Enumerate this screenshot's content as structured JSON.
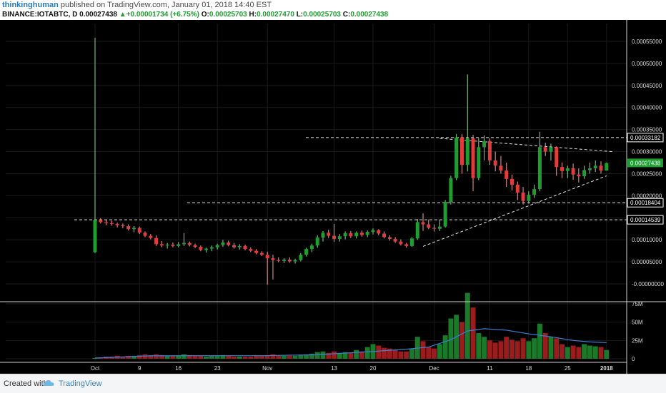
{
  "header": {
    "author": "thinkinghuman",
    "published": "published on TradingView.com, January 01, 2018 14:40 EST",
    "symbol": "BINANCE:IOTABTC, D",
    "last": "0.00027438",
    "change_arrow": "▲",
    "change": "+0.00001734 (+6.75%)",
    "o_label": "O:",
    "o_value": "0.00025703",
    "h_label": "H:",
    "h_value": "0.00027470",
    "l_label": "L:",
    "l_value": "0.00025703",
    "c_label": "C:",
    "c_value": "0.00027438"
  },
  "footer": {
    "created_with": "Created with",
    "brand": "TradingView",
    "logo_icon": "tradingview-cloud-icon"
  },
  "colors": {
    "background": "#000000",
    "up": "#1f9d31",
    "down": "#e23b3b",
    "grid": "#1a1a1a",
    "volume_ma": "#3d7fd6",
    "axis_text": "#dddddd",
    "last_price_bg": "#1f9d31"
  },
  "chart_data": {
    "type": "candlestick",
    "title": "",
    "xlabel": "",
    "ylabel": "",
    "ylim": [
      -0.0,
      0.00055
    ],
    "price_axis_ticks": [
      "0.00055000",
      "0.00050000",
      "0.00045000",
      "0.00040000",
      "0.00035000",
      "0.00030000",
      "0.00025000",
      "0.00020000",
      "0.00015000",
      "0.00010000",
      "0.00005000",
      "-0.00000000"
    ],
    "price_axis_tick_values": [
      0.00055,
      0.0005,
      0.00045,
      0.0004,
      0.00035,
      0.0003,
      0.00025,
      0.0002,
      0.00015,
      0.0001,
      5e-05,
      0
    ],
    "x_axis_labels": [
      "Oct",
      "9",
      "16",
      "23",
      "Nov",
      "13",
      "20",
      "Dec",
      "11",
      "18",
      "25",
      "2018"
    ],
    "x_axis_label_days": [
      0,
      8,
      15,
      22,
      31,
      43,
      50,
      61,
      71,
      78,
      85,
      92
    ],
    "volume_ticks": [
      "75M",
      "50M",
      "25M",
      "0"
    ],
    "volume_tick_values": [
      75,
      50,
      25,
      0
    ],
    "volume_unit": "M",
    "price_level_labels": [
      {
        "label": "0.00033182",
        "value": 0.00033182,
        "style": "dashed"
      },
      {
        "label": "0.00018404",
        "value": 0.00018404,
        "style": "dashed"
      },
      {
        "label": "0.00014539",
        "value": 0.00014539,
        "style": "dashed"
      }
    ],
    "last_price_label": {
      "label": "0.00027438",
      "value": 0.00027438
    },
    "trend_lines": [
      {
        "from": [
          62,
          0.00033
        ],
        "to": [
          93,
          0.0003
        ]
      },
      {
        "from": [
          59,
          8.5e-05
        ],
        "to": [
          92,
          0.000245
        ]
      }
    ],
    "candles": [
      {
        "d": 0,
        "o": 7.2e-05,
        "h": 0.000558,
        "l": 7e-05,
        "c": 0.000145,
        "v": 1
      },
      {
        "d": 1,
        "o": 0.000145,
        "h": 0.000149,
        "l": 0.000137,
        "c": 0.00014,
        "v": 2
      },
      {
        "d": 2,
        "o": 0.00014,
        "h": 0.000145,
        "l": 0.000133,
        "c": 0.000138,
        "v": 3
      },
      {
        "d": 3,
        "o": 0.000138,
        "h": 0.000143,
        "l": 0.000132,
        "c": 0.000136,
        "v": 3
      },
      {
        "d": 4,
        "o": 0.000136,
        "h": 0.000139,
        "l": 0.000128,
        "c": 0.000133,
        "v": 4
      },
      {
        "d": 5,
        "o": 0.000133,
        "h": 0.000137,
        "l": 0.000126,
        "c": 0.000131,
        "v": 3
      },
      {
        "d": 6,
        "o": 0.000131,
        "h": 0.000135,
        "l": 0.000121,
        "c": 0.000124,
        "v": 4
      },
      {
        "d": 7,
        "o": 0.000124,
        "h": 0.000131,
        "l": 0.000117,
        "c": 0.000127,
        "v": 4
      },
      {
        "d": 8,
        "o": 0.000127,
        "h": 0.00013,
        "l": 0.000113,
        "c": 0.000116,
        "v": 5
      },
      {
        "d": 9,
        "o": 0.000116,
        "h": 0.000119,
        "l": 0.000106,
        "c": 0.000109,
        "v": 6
      },
      {
        "d": 10,
        "o": 0.000109,
        "h": 0.000113,
        "l": 0.000101,
        "c": 0.000104,
        "v": 5
      },
      {
        "d": 11,
        "o": 0.000104,
        "h": 0.00011,
        "l": 8.6e-05,
        "c": 9e-05,
        "v": 6
      },
      {
        "d": 12,
        "o": 9e-05,
        "h": 9.7e-05,
        "l": 8.3e-05,
        "c": 8.7e-05,
        "v": 5
      },
      {
        "d": 13,
        "o": 8.7e-05,
        "h": 9.3e-05,
        "l": 8e-05,
        "c": 8.9e-05,
        "v": 4
      },
      {
        "d": 14,
        "o": 8.9e-05,
        "h": 9.4e-05,
        "l": 8.3e-05,
        "c": 8.6e-05,
        "v": 4
      },
      {
        "d": 15,
        "o": 8.6e-05,
        "h": 9.5e-05,
        "l": 8.3e-05,
        "c": 9e-05,
        "v": 4
      },
      {
        "d": 16,
        "o": 9e-05,
        "h": 0.000115,
        "l": 8.6e-05,
        "c": 9.3e-05,
        "v": 6
      },
      {
        "d": 17,
        "o": 9.3e-05,
        "h": 9.6e-05,
        "l": 8.5e-05,
        "c": 8.8e-05,
        "v": 5
      },
      {
        "d": 18,
        "o": 8.8e-05,
        "h": 9.1e-05,
        "l": 8.1e-05,
        "c": 8.4e-05,
        "v": 4
      },
      {
        "d": 19,
        "o": 8.4e-05,
        "h": 8.7e-05,
        "l": 7.4e-05,
        "c": 7.7e-05,
        "v": 4
      },
      {
        "d": 20,
        "o": 7.7e-05,
        "h": 8.2e-05,
        "l": 7.1e-05,
        "c": 8e-05,
        "v": 3
      },
      {
        "d": 21,
        "o": 8e-05,
        "h": 8.7e-05,
        "l": 7.4e-05,
        "c": 8.3e-05,
        "v": 4
      },
      {
        "d": 22,
        "o": 8.3e-05,
        "h": 9.1e-05,
        "l": 7.8e-05,
        "c": 8.8e-05,
        "v": 4
      },
      {
        "d": 23,
        "o": 8.8e-05,
        "h": 0.0001,
        "l": 8.4e-05,
        "c": 9.4e-05,
        "v": 5
      },
      {
        "d": 24,
        "o": 9.4e-05,
        "h": 9.8e-05,
        "l": 8.5e-05,
        "c": 8.8e-05,
        "v": 4
      },
      {
        "d": 25,
        "o": 8.8e-05,
        "h": 9.3e-05,
        "l": 8e-05,
        "c": 8.3e-05,
        "v": 3
      },
      {
        "d": 26,
        "o": 8.3e-05,
        "h": 9e-05,
        "l": 7.8e-05,
        "c": 8.6e-05,
        "v": 3
      },
      {
        "d": 27,
        "o": 8.6e-05,
        "h": 8.9e-05,
        "l": 7.6e-05,
        "c": 7.9e-05,
        "v": 3
      },
      {
        "d": 28,
        "o": 7.9e-05,
        "h": 8.3e-05,
        "l": 7.2e-05,
        "c": 7.5e-05,
        "v": 3
      },
      {
        "d": 29,
        "o": 7.5e-05,
        "h": 7.9e-05,
        "l": 6.7e-05,
        "c": 7e-05,
        "v": 4
      },
      {
        "d": 30,
        "o": 7e-05,
        "h": 7.4e-05,
        "l": 6.3e-05,
        "c": 6.6e-05,
        "v": 4
      },
      {
        "d": 31,
        "o": 6.6e-05,
        "h": 7.3e-05,
        "l": -2e-06,
        "c": 5.8e-05,
        "v": 5
      },
      {
        "d": 32,
        "o": 5.8e-05,
        "h": 6.6e-05,
        "l": 1e-05,
        "c": 5.4e-05,
        "v": 6
      },
      {
        "d": 33,
        "o": 5.4e-05,
        "h": 6e-05,
        "l": 4.9e-05,
        "c": 5.2e-05,
        "v": 4
      },
      {
        "d": 34,
        "o": 5.2e-05,
        "h": 5.8e-05,
        "l": 4.7e-05,
        "c": 5.5e-05,
        "v": 4
      },
      {
        "d": 35,
        "o": 5.5e-05,
        "h": 6e-05,
        "l": 4.8e-05,
        "c": 5.1e-05,
        "v": 4
      },
      {
        "d": 36,
        "o": 5.1e-05,
        "h": 5.7e-05,
        "l": 4.6e-05,
        "c": 5.4e-05,
        "v": 4
      },
      {
        "d": 37,
        "o": 5.4e-05,
        "h": 7e-05,
        "l": 5.1e-05,
        "c": 6.6e-05,
        "v": 5
      },
      {
        "d": 38,
        "o": 6.6e-05,
        "h": 8.2e-05,
        "l": 6.2e-05,
        "c": 7.9e-05,
        "v": 6
      },
      {
        "d": 39,
        "o": 7.9e-05,
        "h": 9.1e-05,
        "l": 7.2e-05,
        "c": 8.7e-05,
        "v": 7
      },
      {
        "d": 40,
        "o": 8.7e-05,
        "h": 0.00011,
        "l": 8.2e-05,
        "c": 0.000105,
        "v": 9
      },
      {
        "d": 41,
        "o": 0.000105,
        "h": 0.00012,
        "l": 9.6e-05,
        "c": 0.000116,
        "v": 10
      },
      {
        "d": 42,
        "o": 0.000116,
        "h": 0.000123,
        "l": 0.000104,
        "c": 0.000109,
        "v": 8
      },
      {
        "d": 43,
        "o": 0.000109,
        "h": 0.000136,
        "l": 9.5e-05,
        "c": 0.000102,
        "v": 10
      },
      {
        "d": 44,
        "o": 0.000102,
        "h": 0.000113,
        "l": 9.6e-05,
        "c": 0.000108,
        "v": 8
      },
      {
        "d": 45,
        "o": 0.000108,
        "h": 0.000119,
        "l": 0.000101,
        "c": 0.000115,
        "v": 9
      },
      {
        "d": 46,
        "o": 0.000115,
        "h": 0.00012,
        "l": 0.000104,
        "c": 0.000108,
        "v": 8
      },
      {
        "d": 47,
        "o": 0.000108,
        "h": 0.000119,
        "l": 0.000103,
        "c": 0.000116,
        "v": 12
      },
      {
        "d": 48,
        "o": 0.000116,
        "h": 0.000121,
        "l": 0.000107,
        "c": 0.000111,
        "v": 10
      },
      {
        "d": 49,
        "o": 0.000111,
        "h": 0.000121,
        "l": 0.000106,
        "c": 0.000118,
        "v": 16
      },
      {
        "d": 50,
        "o": 0.000118,
        "h": 0.000126,
        "l": 0.000112,
        "c": 0.000122,
        "v": 20
      },
      {
        "d": 51,
        "o": 0.000122,
        "h": 0.000124,
        "l": 0.00011,
        "c": 0.000114,
        "v": 18
      },
      {
        "d": 52,
        "o": 0.000114,
        "h": 0.000119,
        "l": 0.000103,
        "c": 0.000106,
        "v": 15
      },
      {
        "d": 53,
        "o": 0.000106,
        "h": 0.00011,
        "l": 9.8e-05,
        "c": 0.000102,
        "v": 14
      },
      {
        "d": 54,
        "o": 0.000102,
        "h": 0.000106,
        "l": 9.3e-05,
        "c": 9.6e-05,
        "v": 12
      },
      {
        "d": 55,
        "o": 9.6e-05,
        "h": 0.000101,
        "l": 8.7e-05,
        "c": 9e-05,
        "v": 10
      },
      {
        "d": 56,
        "o": 9e-05,
        "h": 9.3e-05,
        "l": 8.2e-05,
        "c": 8.6e-05,
        "v": 10
      },
      {
        "d": 57,
        "o": 8.6e-05,
        "h": 0.000106,
        "l": 8.4e-05,
        "c": 0.000103,
        "v": 14
      },
      {
        "d": 58,
        "o": 0.000103,
        "h": 0.000147,
        "l": 0.0001,
        "c": 0.00014,
        "v": 30
      },
      {
        "d": 59,
        "o": 0.00014,
        "h": 0.00016,
        "l": 0.00012,
        "c": 0.000135,
        "v": 24
      },
      {
        "d": 60,
        "o": 0.000135,
        "h": 0.000146,
        "l": 0.000124,
        "c": 0.000127,
        "v": 16
      },
      {
        "d": 61,
        "o": 0.000127,
        "h": 0.000135,
        "l": 0.000119,
        "c": 0.000125,
        "v": 14
      },
      {
        "d": 62,
        "o": 0.000125,
        "h": 0.000145,
        "l": 0.00012,
        "c": 0.00013,
        "v": 20
      },
      {
        "d": 63,
        "o": 0.00013,
        "h": 0.00019,
        "l": 0.000128,
        "c": 0.000186,
        "v": 32
      },
      {
        "d": 64,
        "o": 0.000186,
        "h": 0.000245,
        "l": 0.00018,
        "c": 0.00024,
        "v": 55
      },
      {
        "d": 65,
        "o": 0.00024,
        "h": 0.00034,
        "l": 0.000235,
        "c": 0.000332,
        "v": 60
      },
      {
        "d": 66,
        "o": 0.000332,
        "h": 0.00034,
        "l": 0.00025,
        "c": 0.00027,
        "v": 50
      },
      {
        "d": 67,
        "o": 0.00027,
        "h": 0.000475,
        "l": 0.000255,
        "c": 0.00033,
        "v": 90
      },
      {
        "d": 68,
        "o": 0.00033,
        "h": 0.000338,
        "l": 0.00021,
        "c": 0.00024,
        "v": 70
      },
      {
        "d": 69,
        "o": 0.00024,
        "h": 0.00033,
        "l": 0.000235,
        "c": 0.00031,
        "v": 35
      },
      {
        "d": 70,
        "o": 0.00031,
        "h": 0.000337,
        "l": 0.00028,
        "c": 0.000324,
        "v": 30
      },
      {
        "d": 71,
        "o": 0.000324,
        "h": 0.00033,
        "l": 0.00027,
        "c": 0.00028,
        "v": 25
      },
      {
        "d": 72,
        "o": 0.00028,
        "h": 0.0003,
        "l": 0.000255,
        "c": 0.000268,
        "v": 22
      },
      {
        "d": 73,
        "o": 0.000268,
        "h": 0.00029,
        "l": 0.00025,
        "c": 0.000257,
        "v": 24
      },
      {
        "d": 74,
        "o": 0.000257,
        "h": 0.000275,
        "l": 0.00022,
        "c": 0.000238,
        "v": 30
      },
      {
        "d": 75,
        "o": 0.000238,
        "h": 0.000248,
        "l": 0.000212,
        "c": 0.000225,
        "v": 26
      },
      {
        "d": 76,
        "o": 0.000225,
        "h": 0.000232,
        "l": 0.00019,
        "c": 0.000207,
        "v": 24
      },
      {
        "d": 77,
        "o": 0.000207,
        "h": 0.00022,
        "l": 0.00018,
        "c": 0.000188,
        "v": 28
      },
      {
        "d": 78,
        "o": 0.000188,
        "h": 0.00021,
        "l": 0.000182,
        "c": 0.000202,
        "v": 24
      },
      {
        "d": 79,
        "o": 0.000202,
        "h": 0.000225,
        "l": 0.000195,
        "c": 0.000215,
        "v": 28
      },
      {
        "d": 80,
        "o": 0.000215,
        "h": 0.000345,
        "l": 0.00021,
        "c": 0.00031,
        "v": 48
      },
      {
        "d": 81,
        "o": 0.00031,
        "h": 0.00032,
        "l": 0.00029,
        "c": 0.0003,
        "v": 35
      },
      {
        "d": 82,
        "o": 0.0003,
        "h": 0.000318,
        "l": 0.00028,
        "c": 0.00031,
        "v": 30
      },
      {
        "d": 83,
        "o": 0.00031,
        "h": 0.000312,
        "l": 0.000245,
        "c": 0.000265,
        "v": 28
      },
      {
        "d": 84,
        "o": 0.000265,
        "h": 0.000275,
        "l": 0.00024,
        "c": 0.000256,
        "v": 20
      },
      {
        "d": 85,
        "o": 0.000256,
        "h": 0.000268,
        "l": 0.00024,
        "c": 0.000262,
        "v": 16
      },
      {
        "d": 86,
        "o": 0.000262,
        "h": 0.000273,
        "l": 0.000236,
        "c": 0.000248,
        "v": 18
      },
      {
        "d": 87,
        "o": 0.000248,
        "h": 0.000262,
        "l": 0.00023,
        "c": 0.000244,
        "v": 16
      },
      {
        "d": 88,
        "o": 0.000244,
        "h": 0.000268,
        "l": 0.000238,
        "c": 0.000258,
        "v": 20
      },
      {
        "d": 89,
        "o": 0.000258,
        "h": 0.000275,
        "l": 0.00025,
        "c": 0.000262,
        "v": 18
      },
      {
        "d": 90,
        "o": 0.000262,
        "h": 0.00028,
        "l": 0.000254,
        "c": 0.000268,
        "v": 17
      },
      {
        "d": 91,
        "o": 0.000268,
        "h": 0.000278,
        "l": 0.00025,
        "c": 0.000257,
        "v": 16
      },
      {
        "d": 92,
        "o": 0.000257,
        "h": 0.000275,
        "l": 0.000257,
        "c": 0.000274,
        "v": 12
      }
    ],
    "volume_ma": [
      {
        "d": 0,
        "v": 1
      },
      {
        "d": 10,
        "v": 4
      },
      {
        "d": 20,
        "v": 4.2
      },
      {
        "d": 30,
        "v": 4.2
      },
      {
        "d": 40,
        "v": 5.5
      },
      {
        "d": 50,
        "v": 10
      },
      {
        "d": 56,
        "v": 13
      },
      {
        "d": 60,
        "v": 16
      },
      {
        "d": 64,
        "v": 26
      },
      {
        "d": 67,
        "v": 38
      },
      {
        "d": 70,
        "v": 41
      },
      {
        "d": 74,
        "v": 39
      },
      {
        "d": 78,
        "v": 34
      },
      {
        "d": 82,
        "v": 30
      },
      {
        "d": 86,
        "v": 25
      },
      {
        "d": 89,
        "v": 23
      },
      {
        "d": 92,
        "v": 22
      }
    ]
  }
}
